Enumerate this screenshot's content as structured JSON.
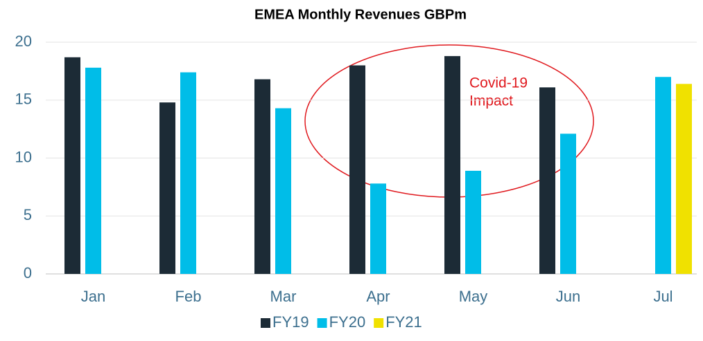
{
  "chart_data": {
    "type": "bar",
    "title": "EMEA Monthly Revenues GBPm",
    "categories": [
      "Jan",
      "Feb",
      "Mar",
      "Apr",
      "May",
      "Jun",
      "Jul"
    ],
    "series": [
      {
        "name": "FY19",
        "color": "#1c2b36",
        "values": [
          18.7,
          14.8,
          16.8,
          18.0,
          18.8,
          16.1,
          null
        ]
      },
      {
        "name": "FY20",
        "color": "#00bde8",
        "values": [
          17.8,
          17.4,
          14.3,
          7.8,
          8.9,
          12.1,
          17.0
        ]
      },
      {
        "name": "FY21",
        "color": "#f0e100",
        "values": [
          null,
          null,
          null,
          null,
          null,
          null,
          16.4
        ]
      }
    ],
    "ylim": [
      0,
      20
    ],
    "yticks": [
      0,
      5,
      10,
      15,
      20
    ],
    "grid": true,
    "annotation": [
      "Covid-19",
      "Impact"
    ],
    "legend": "bottom"
  }
}
